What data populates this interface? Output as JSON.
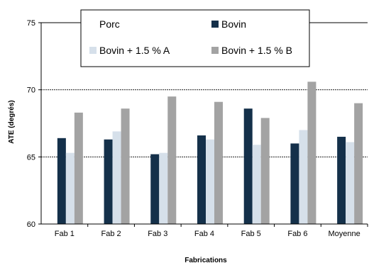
{
  "chart_data": {
    "type": "bar",
    "xlabel": "Fabrications",
    "ylabel": "ATE (degrés)",
    "categories": [
      "Fab 1",
      "Fab 2",
      "Fab 3",
      "Fab 4",
      "Fab 5",
      "Fab 6",
      "Moyenne"
    ],
    "ylim": [
      60,
      75
    ],
    "yticks": [
      "60",
      "65",
      "70",
      "75"
    ],
    "grid": "horizontal dashed at 65 and 70",
    "legend_position": "top",
    "series": [
      {
        "name": "Porc",
        "color": "#ffffff",
        "values": [
          60,
          60,
          60,
          60,
          60,
          60,
          60
        ]
      },
      {
        "name": "Bovin",
        "color": "#14304a",
        "values": [
          66.4,
          66.3,
          65.2,
          66.6,
          68.6,
          66.0,
          66.5
        ]
      },
      {
        "name": "Bovin + 1.5 % A",
        "color": "#d6e0ea",
        "values": [
          65.3,
          66.9,
          65.3,
          66.3,
          65.9,
          67.0,
          66.1
        ]
      },
      {
        "name": "Bovin + 1.5 % B",
        "color": "#a3a3a3",
        "values": [
          68.3,
          68.6,
          69.5,
          69.1,
          67.9,
          70.6,
          69.0
        ]
      }
    ]
  }
}
